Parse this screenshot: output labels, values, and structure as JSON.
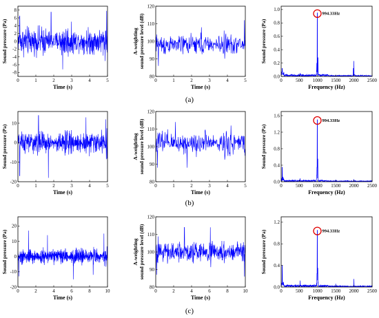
{
  "figure": {
    "captions": [
      "(a)",
      "(b)",
      "(c)"
    ]
  },
  "chart_data": [
    {
      "row": 0,
      "col": 0,
      "type": "line",
      "xlabel": "Time (s)",
      "ylabel": [
        "Sound pressure (Pa)"
      ],
      "xlim": [
        0,
        5
      ],
      "ylim": [
        -9,
        9
      ],
      "xticks": [
        0,
        1,
        2,
        3,
        4,
        5
      ],
      "yticks": [
        -8,
        -6,
        -4,
        -2,
        0,
        2,
        4,
        6,
        8
      ],
      "signal": {
        "kind": "noise",
        "n": 520,
        "baseline": 0,
        "amplitude": 2.6,
        "spikes": [
          [
            0.1,
            6.5
          ],
          [
            1.85,
            7.5
          ],
          [
            2.5,
            -7.2
          ],
          [
            4.95,
            7.8
          ]
        ]
      },
      "series": [
        {
          "values_summary": "time-domain sound pressure, approx. ±3 Pa with peaks to ±8 Pa"
        }
      ]
    },
    {
      "row": 0,
      "col": 1,
      "type": "line",
      "xlabel": "Time (s)",
      "ylabel": [
        "A-weighting",
        "sound pressure level (dB)"
      ],
      "xlim": [
        0,
        5
      ],
      "ylim": [
        80,
        120
      ],
      "xticks": [
        0,
        1,
        2,
        3,
        4,
        5
      ],
      "yticks": [
        80,
        90,
        100,
        110,
        120
      ],
      "signal": {
        "kind": "noise",
        "n": 300,
        "baseline": 98,
        "amplitude": 4.5,
        "spikes": [
          [
            0.15,
            86
          ],
          [
            2.55,
            108
          ],
          [
            4.95,
            112
          ]
        ]
      },
      "series": [
        {
          "values_summary": "A-weighted SPL fluctuating around 98 dB (range ~86–112 dB)"
        }
      ]
    },
    {
      "row": 0,
      "col": 2,
      "type": "spectrum",
      "xlabel": "Frequency (Hz)",
      "ylabel": [
        "Sound pressure (Pa)"
      ],
      "xlim": [
        0,
        2500
      ],
      "ylim": [
        0,
        1.05
      ],
      "xticks": [
        0,
        500,
        1000,
        1500,
        2000,
        2500
      ],
      "yticks": [
        0,
        0.2,
        0.4,
        0.6,
        0.8,
        1.0
      ],
      "peaks": [
        [
          994.33,
          0.95
        ],
        [
          1010,
          0.28
        ],
        [
          980,
          0.2
        ],
        [
          2000,
          0.23
        ],
        [
          1985,
          0.12
        ],
        [
          520,
          0.05
        ],
        [
          30,
          0.12
        ]
      ],
      "noise_floor": 0.03,
      "annotation": {
        "label": "994.33Hz",
        "x": 994.33,
        "y": 0.95
      }
    },
    {
      "row": 1,
      "col": 0,
      "type": "line",
      "xlabel": "Time (s)",
      "ylabel": [
        "Sound pressure (Pa)"
      ],
      "xlim": [
        0,
        5
      ],
      "ylim": [
        -20,
        16
      ],
      "xticks": [
        0,
        1,
        2,
        3,
        4,
        5
      ],
      "yticks": [
        -20,
        -10,
        0,
        10
      ],
      "signal": {
        "kind": "noise",
        "n": 520,
        "baseline": 0,
        "amplitude": 4.2,
        "spikes": [
          [
            0.1,
            -17
          ],
          [
            1.15,
            14
          ],
          [
            1.7,
            -18
          ],
          [
            3.8,
            13
          ],
          [
            4.9,
            12
          ]
        ]
      },
      "series": [
        {
          "values_summary": "time-domain sound pressure, approx. ±5 Pa with peaks to ±18 Pa"
        }
      ]
    },
    {
      "row": 1,
      "col": 1,
      "type": "line",
      "xlabel": "Time (s)",
      "ylabel": [
        "A-weighting",
        "sound pressure level (dB)"
      ],
      "xlim": [
        0,
        5
      ],
      "ylim": [
        80,
        120
      ],
      "xticks": [
        0,
        1,
        2,
        3,
        4,
        5
      ],
      "yticks": [
        80,
        90,
        100,
        110,
        120
      ],
      "signal": {
        "kind": "noise",
        "n": 300,
        "baseline": 102,
        "amplitude": 5,
        "spikes": [
          [
            0.1,
            88
          ],
          [
            1.1,
            114
          ],
          [
            1.75,
            88
          ],
          [
            4.2,
            112
          ]
        ]
      },
      "series": [
        {
          "values_summary": "A-weighted SPL fluctuating around 102 dB (range ~88–114 dB)"
        }
      ]
    },
    {
      "row": 1,
      "col": 2,
      "type": "spectrum",
      "xlabel": "Frequency (Hz)",
      "ylabel": [
        "Sound pressure (Pa)"
      ],
      "xlim": [
        0,
        2500
      ],
      "ylim": [
        0,
        1.7
      ],
      "xticks": [
        0,
        500,
        1000,
        1500,
        2000,
        2500
      ],
      "yticks": [
        0,
        0.4,
        0.8,
        1.2,
        1.6
      ],
      "peaks": [
        [
          994.33,
          1.5
        ],
        [
          1005,
          0.55
        ],
        [
          985,
          0.35
        ],
        [
          30,
          0.35
        ],
        [
          520,
          0.08
        ],
        [
          1500,
          0.05
        ],
        [
          2000,
          0.06
        ]
      ],
      "noise_floor": 0.04,
      "annotation": {
        "label": "994.33Hz",
        "x": 994.33,
        "y": 1.5
      }
    },
    {
      "row": 2,
      "col": 0,
      "type": "line",
      "xlabel": "Time (s)",
      "ylabel": [
        "Sound pressure (Pa)"
      ],
      "xlim": [
        0,
        10
      ],
      "ylim": [
        -20,
        26
      ],
      "xticks": [
        0,
        2,
        4,
        6,
        8,
        10
      ],
      "yticks": [
        -20,
        -10,
        0,
        10,
        20
      ],
      "signal": {
        "kind": "noise",
        "n": 700,
        "baseline": 0,
        "amplitude": 3.8,
        "spikes": [
          [
            0.1,
            -13
          ],
          [
            1.2,
            17
          ],
          [
            3.3,
            14
          ],
          [
            6.2,
            -15
          ],
          [
            8.4,
            -12
          ],
          [
            9.6,
            15
          ]
        ]
      },
      "series": [
        {
          "values_summary": "time-domain sound pressure over 10 s, approx. ±5 Pa with peaks to ±17 Pa"
        }
      ]
    },
    {
      "row": 2,
      "col": 1,
      "type": "line",
      "xlabel": "Time (s)",
      "ylabel": [
        "A-weighting",
        "sound pressure level (dB)"
      ],
      "xlim": [
        0,
        10
      ],
      "ylim": [
        80,
        120
      ],
      "xticks": [
        0,
        2,
        4,
        6,
        8,
        10
      ],
      "yticks": [
        80,
        90,
        100,
        110,
        120
      ],
      "signal": {
        "kind": "noise",
        "n": 420,
        "baseline": 100,
        "amplitude": 4.5,
        "spikes": [
          [
            0.1,
            87
          ],
          [
            3.2,
            114
          ],
          [
            6.1,
            114
          ],
          [
            9.9,
            86
          ]
        ]
      },
      "series": [
        {
          "values_summary": "A-weighted SPL over 10 s fluctuating around 100 dB (range ~86–114 dB)"
        }
      ]
    },
    {
      "row": 2,
      "col": 2,
      "type": "spectrum",
      "xlabel": "Frequency (Hz)",
      "ylabel": [
        "Sound pressure (Pa)"
      ],
      "xlim": [
        0,
        2500
      ],
      "ylim": [
        0,
        1.3
      ],
      "xticks": [
        0,
        500,
        1000,
        1500,
        2000,
        2500
      ],
      "yticks": [
        0,
        0.4,
        0.8,
        1.2
      ],
      "peaks": [
        [
          994.33,
          1.05
        ],
        [
          1005,
          0.35
        ],
        [
          985,
          0.25
        ],
        [
          30,
          0.4
        ],
        [
          520,
          0.12
        ],
        [
          2000,
          0.15
        ],
        [
          1500,
          0.06
        ]
      ],
      "noise_floor": 0.04,
      "annotation": {
        "label": "994.33Hz",
        "x": 994.33,
        "y": 1.05
      }
    }
  ]
}
